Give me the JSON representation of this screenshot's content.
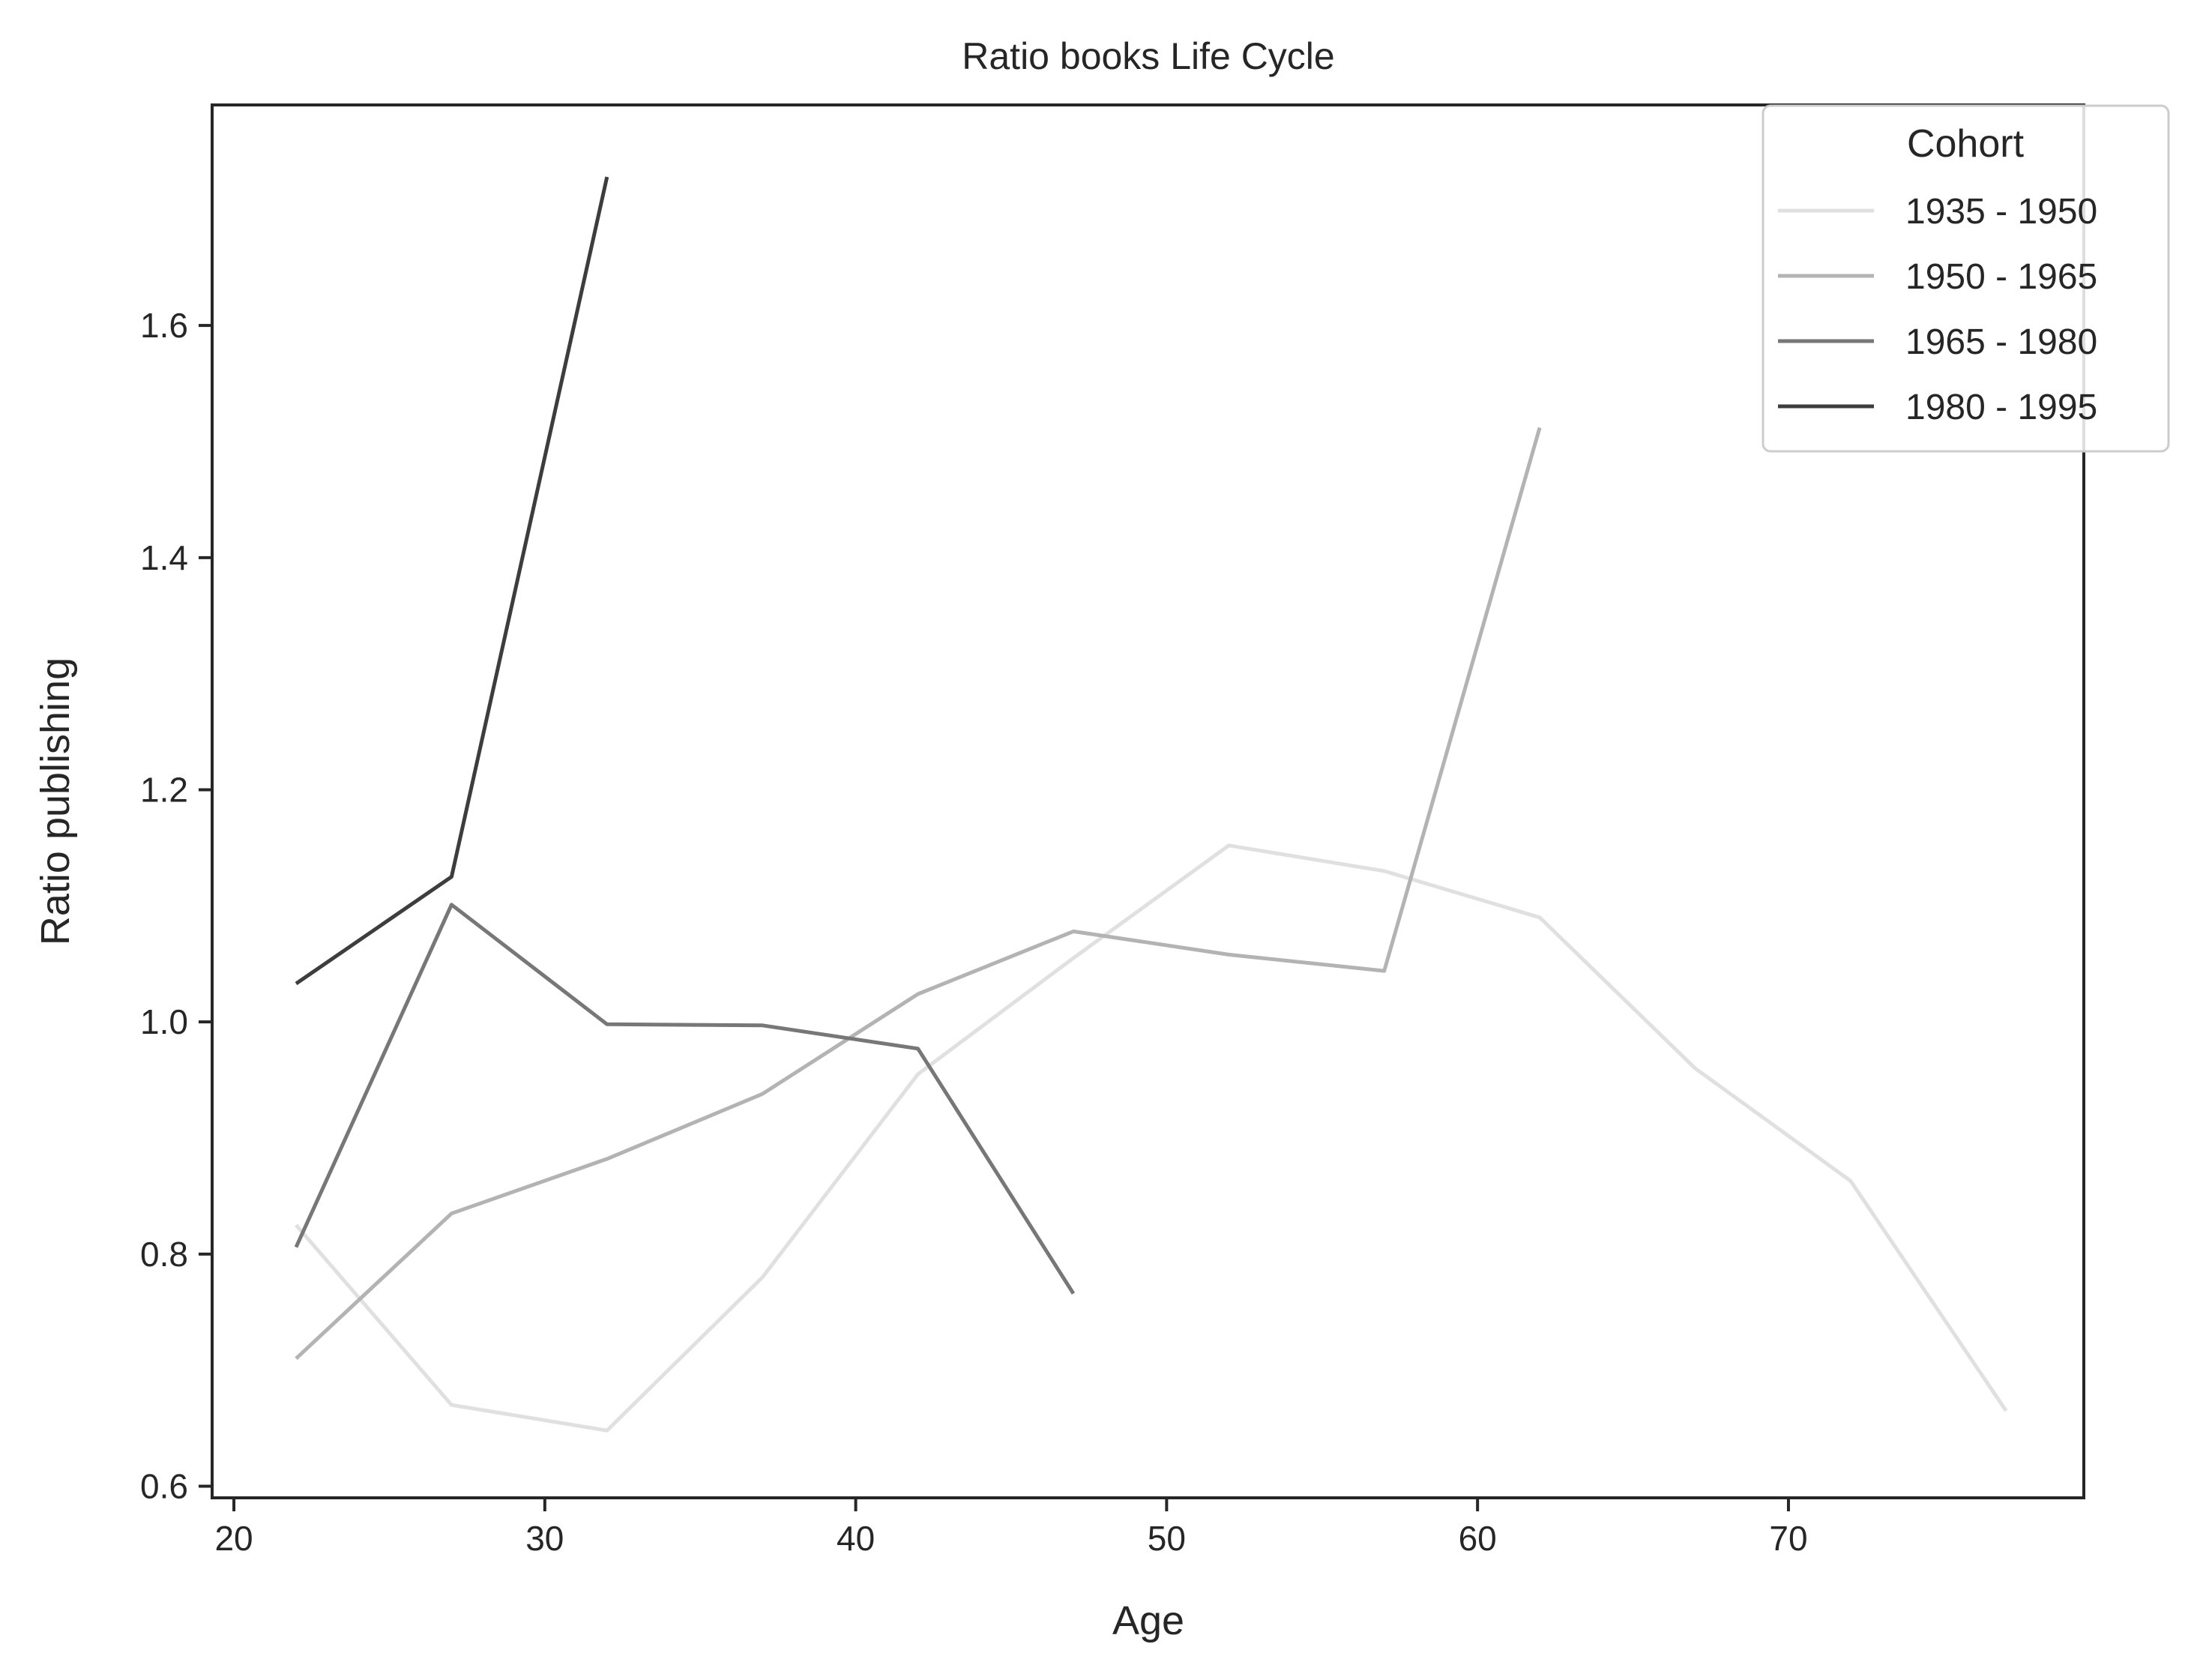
{
  "chart_data": {
    "type": "line",
    "title": "Ratio books Life Cycle",
    "xlabel": "Age",
    "ylabel": "Ratio publishing",
    "xlim": [
      19.3,
      79.5
    ],
    "ylim": [
      0.59,
      1.79
    ],
    "xticks": [
      20,
      30,
      40,
      50,
      60,
      70
    ],
    "yticks": [
      0.6,
      0.8,
      1.0,
      1.2,
      1.4,
      1.6
    ],
    "xtick_labels": [
      "20",
      "30",
      "40",
      "50",
      "60",
      "70"
    ],
    "ytick_labels": [
      "0.6",
      "0.8",
      "1.0",
      "1.2",
      "1.4",
      "1.6"
    ],
    "grid": false,
    "legend": {
      "title": "Cohort",
      "placement": "top-right"
    },
    "series": [
      {
        "name": "1935 - 1950",
        "color": "#e0e0e0",
        "x": [
          22,
          27,
          32,
          37,
          42,
          47,
          52,
          57,
          62,
          67,
          72,
          77
        ],
        "y": [
          0.825,
          0.67,
          0.648,
          0.78,
          0.955,
          1.055,
          1.152,
          1.13,
          1.09,
          0.96,
          0.863,
          0.665
        ]
      },
      {
        "name": "1950 - 1965",
        "color": "#b3b3b3",
        "x": [
          22,
          27,
          32,
          37,
          42,
          47,
          52,
          57,
          62
        ],
        "y": [
          0.71,
          0.835,
          0.882,
          0.938,
          1.024,
          1.078,
          1.058,
          1.044,
          1.512
        ]
      },
      {
        "name": "1965 - 1980",
        "color": "#777777",
        "x": [
          22,
          27,
          32,
          37,
          42,
          47
        ],
        "y": [
          0.806,
          1.101,
          0.998,
          0.997,
          0.977,
          0.766
        ]
      },
      {
        "name": "1980 - 1995",
        "color": "#3d3d3d",
        "x": [
          22,
          27,
          32
        ],
        "y": [
          1.033,
          1.125,
          1.728
        ]
      }
    ]
  }
}
